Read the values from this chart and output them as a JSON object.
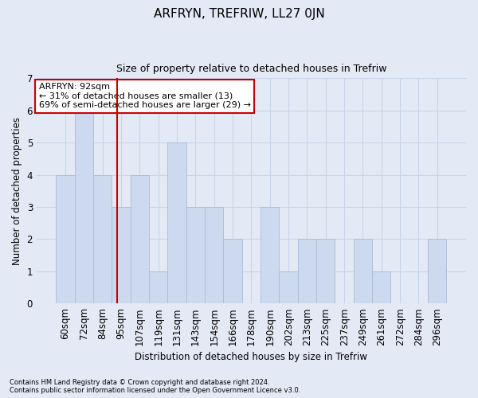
{
  "title1": "ARFRYN, TREFRIW, LL27 0JN",
  "title2": "Size of property relative to detached houses in Trefriw",
  "xlabel": "Distribution of detached houses by size in Trefriw",
  "ylabel": "Number of detached properties",
  "categories": [
    "60sqm",
    "72sqm",
    "84sqm",
    "95sqm",
    "107sqm",
    "119sqm",
    "131sqm",
    "143sqm",
    "154sqm",
    "166sqm",
    "178sqm",
    "190sqm",
    "202sqm",
    "213sqm",
    "225sqm",
    "237sqm",
    "249sqm",
    "261sqm",
    "272sqm",
    "284sqm",
    "296sqm"
  ],
  "values": [
    4,
    6,
    4,
    3,
    4,
    1,
    5,
    3,
    3,
    2,
    0,
    3,
    1,
    2,
    2,
    0,
    2,
    1,
    0,
    0,
    2
  ],
  "bar_color": "#ccd9ee",
  "bar_edgecolor": "#aabbd8",
  "vline_x": 2.78,
  "vline_color": "#cc0000",
  "annotation_text": "ARFRYN: 92sqm\n← 31% of detached houses are smaller (13)\n69% of semi-detached houses are larger (29) →",
  "annotation_box_facecolor": "#ffffff",
  "annotation_box_edgecolor": "#cc0000",
  "ylim": [
    0,
    7
  ],
  "yticks": [
    0,
    1,
    2,
    3,
    4,
    5,
    6,
    7
  ],
  "grid_color": "#c8d4e8",
  "background_color": "#e4eaf5",
  "footer1": "Contains HM Land Registry data © Crown copyright and database right 2024.",
  "footer2": "Contains public sector information licensed under the Open Government Licence v3.0."
}
